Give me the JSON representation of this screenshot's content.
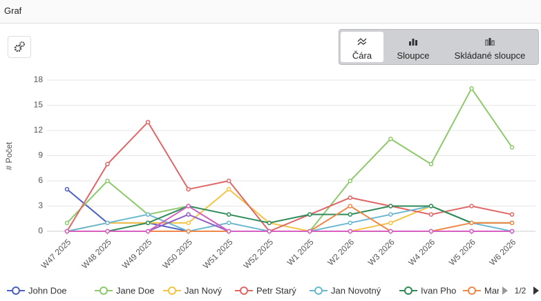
{
  "header": {
    "title": "Graf"
  },
  "toolbar": {
    "buttons": [
      "Čára",
      "Sloupce",
      "Skládané sloupce"
    ],
    "active": 0
  },
  "legend_pager": "1/2",
  "chart_data": {
    "type": "line",
    "y_label": "# Počet",
    "categories": [
      "W47 2025",
      "W48 2025",
      "W49 2025",
      "W50 2025",
      "W51 2025",
      "W52 2025",
      "W1 2025",
      "W2 2026",
      "W3 2026",
      "W4 2026",
      "W5 2026",
      "W6 2026"
    ],
    "ylim": [
      0,
      18
    ],
    "yticks": [
      0,
      3,
      6,
      9,
      12,
      15,
      18
    ],
    "grid": true,
    "series": [
      {
        "name": "John Doe",
        "color": "#4a5fc1",
        "values": [
          5,
          1,
          1,
          0,
          0,
          0,
          0,
          0,
          0,
          0,
          0,
          0
        ]
      },
      {
        "name": "Jane Doe",
        "color": "#8cc96a",
        "values": [
          1,
          6,
          2,
          3,
          0,
          0,
          0,
          6,
          11,
          8,
          17,
          10
        ]
      },
      {
        "name": "Jan Nový",
        "color": "#f5c242",
        "values": [
          0,
          1,
          1,
          1,
          5,
          1,
          0,
          0,
          1,
          3,
          1,
          1
        ]
      },
      {
        "name": "Petr Starý",
        "color": "#e06666",
        "values": [
          0,
          8,
          13,
          5,
          6,
          0,
          2,
          4,
          3,
          2,
          3,
          2
        ]
      },
      {
        "name": "Jan Novotný",
        "color": "#6ab8d0",
        "values": [
          0,
          1,
          2,
          0,
          1,
          0,
          0,
          1,
          2,
          3,
          1,
          0
        ]
      },
      {
        "name": "Ivan Pho",
        "color": "#2e8b57",
        "values": [
          0,
          0,
          1,
          3,
          2,
          1,
          2,
          2,
          3,
          3,
          1,
          1
        ]
      },
      {
        "name": "Mar",
        "color": "#f0874a",
        "values": [
          0,
          0,
          0,
          0,
          0,
          0,
          0,
          3,
          0,
          0,
          1,
          1
        ]
      },
      {
        "color": "#8e5cc4",
        "values": [
          0,
          0,
          0,
          2,
          0,
          0,
          0,
          0,
          0,
          0,
          0,
          0
        ]
      },
      {
        "color": "#d65fc0",
        "values": [
          0,
          0,
          0,
          3,
          0,
          0,
          0,
          0,
          0,
          0,
          0,
          0
        ]
      }
    ]
  }
}
